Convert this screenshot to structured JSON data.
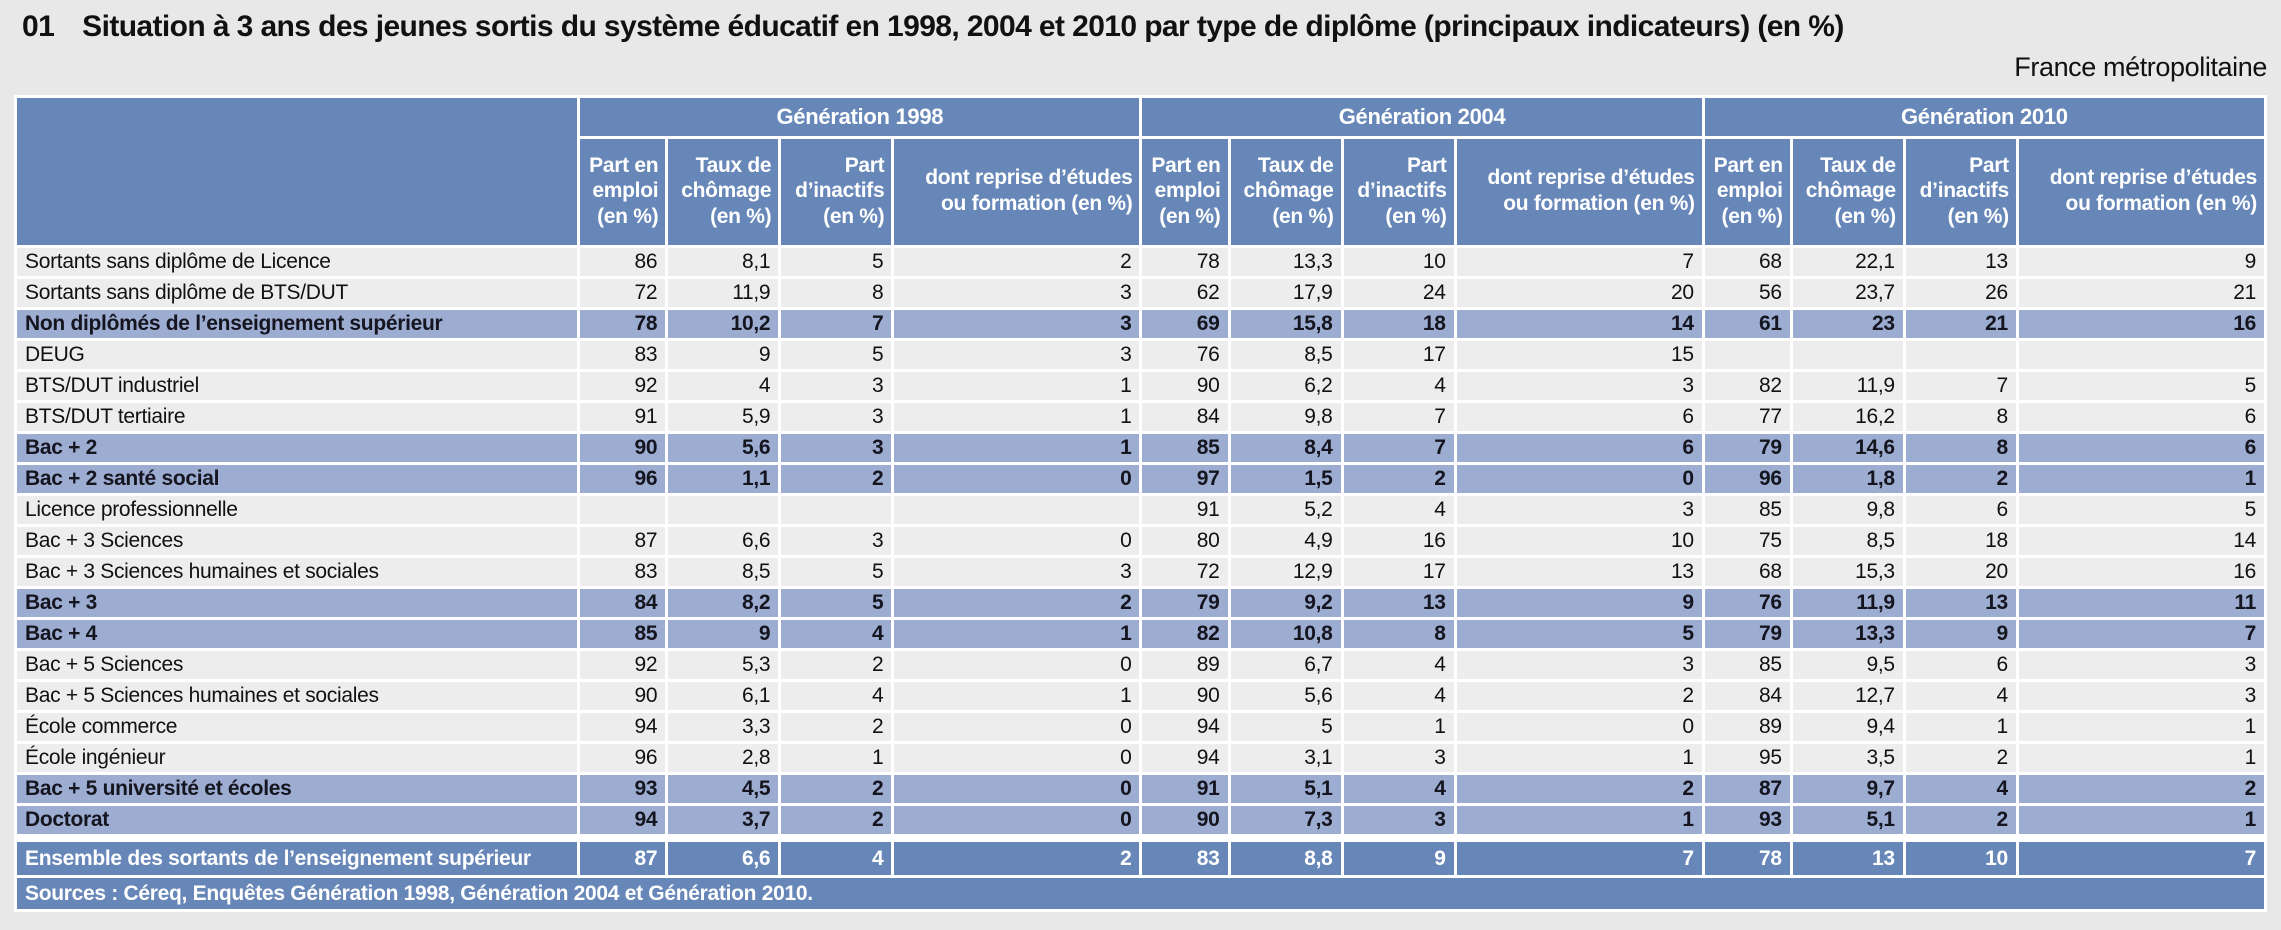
{
  "page": {
    "number": "01",
    "title": "Situation à 3 ans des jeunes sortis du système éducatif en 1998, 2004 et 2010 par type de diplôme (principaux indicateurs) (en %)",
    "region": "France métropolitaine"
  },
  "colors": {
    "header_blue": "#6787b9",
    "highlight_blue": "#9dadd2",
    "row_gray": "#ededed",
    "page_background": "#e8e8e8"
  },
  "table": {
    "groups": [
      "Génération 1998",
      "Génération 2004",
      "Génération 2010"
    ],
    "columns": [
      "Part en emploi (en %)",
      "Taux de chômage (en %)",
      "Part d’inactifs (en %)",
      "dont reprise d’études ou formation (en %)"
    ],
    "rows": [
      {
        "label": "Sortants sans diplôme de Licence",
        "style": "normal",
        "values": [
          "86",
          "8,1",
          "5",
          "2",
          "78",
          "13,3",
          "10",
          "7",
          "68",
          "22,1",
          "13",
          "9"
        ]
      },
      {
        "label": "Sortants sans diplôme de BTS/DUT",
        "style": "normal",
        "values": [
          "72",
          "11,9",
          "8",
          "3",
          "62",
          "17,9",
          "24",
          "20",
          "56",
          "23,7",
          "26",
          "21"
        ]
      },
      {
        "label": "Non diplômés de l’enseignement supérieur",
        "style": "highlight",
        "values": [
          "78",
          "10,2",
          "7",
          "3",
          "69",
          "15,8",
          "18",
          "14",
          "61",
          "23",
          "21",
          "16"
        ]
      },
      {
        "label": "DEUG",
        "style": "normal",
        "values": [
          "83",
          "9",
          "5",
          "3",
          "76",
          "8,5",
          "17",
          "15",
          "",
          "",
          "",
          ""
        ]
      },
      {
        "label": "BTS/DUT industriel",
        "style": "normal",
        "values": [
          "92",
          "4",
          "3",
          "1",
          "90",
          "6,2",
          "4",
          "3",
          "82",
          "11,9",
          "7",
          "5"
        ]
      },
      {
        "label": "BTS/DUT tertiaire",
        "style": "normal",
        "values": [
          "91",
          "5,9",
          "3",
          "1",
          "84",
          "9,8",
          "7",
          "6",
          "77",
          "16,2",
          "8",
          "6"
        ]
      },
      {
        "label": "Bac + 2",
        "style": "highlight",
        "values": [
          "90",
          "5,6",
          "3",
          "1",
          "85",
          "8,4",
          "7",
          "6",
          "79",
          "14,6",
          "8",
          "6"
        ]
      },
      {
        "label": "Bac + 2 santé social",
        "style": "highlight",
        "values": [
          "96",
          "1,1",
          "2",
          "0",
          "97",
          "1,5",
          "2",
          "0",
          "96",
          "1,8",
          "2",
          "1"
        ]
      },
      {
        "label": "Licence professionnelle",
        "style": "normal",
        "values": [
          "",
          "",
          "",
          "",
          "91",
          "5,2",
          "4",
          "3",
          "85",
          "9,8",
          "6",
          "5"
        ]
      },
      {
        "label": "Bac + 3 Sciences",
        "style": "normal",
        "values": [
          "87",
          "6,6",
          "3",
          "0",
          "80",
          "4,9",
          "16",
          "10",
          "75",
          "8,5",
          "18",
          "14"
        ]
      },
      {
        "label": "Bac + 3 Sciences humaines et sociales",
        "style": "normal",
        "values": [
          "83",
          "8,5",
          "5",
          "3",
          "72",
          "12,9",
          "17",
          "13",
          "68",
          "15,3",
          "20",
          "16"
        ]
      },
      {
        "label": "Bac + 3",
        "style": "highlight",
        "values": [
          "84",
          "8,2",
          "5",
          "2",
          "79",
          "9,2",
          "13",
          "9",
          "76",
          "11,9",
          "13",
          "11"
        ]
      },
      {
        "label": "Bac + 4",
        "style": "highlight",
        "values": [
          "85",
          "9",
          "4",
          "1",
          "82",
          "10,8",
          "8",
          "5",
          "79",
          "13,3",
          "9",
          "7"
        ]
      },
      {
        "label": "Bac + 5 Sciences",
        "style": "normal",
        "values": [
          "92",
          "5,3",
          "2",
          "0",
          "89",
          "6,7",
          "4",
          "3",
          "85",
          "9,5",
          "6",
          "3"
        ]
      },
      {
        "label": "Bac + 5 Sciences humaines et sociales",
        "style": "normal",
        "values": [
          "90",
          "6,1",
          "4",
          "1",
          "90",
          "5,6",
          "4",
          "2",
          "84",
          "12,7",
          "4",
          "3"
        ]
      },
      {
        "label": "École commerce",
        "style": "normal",
        "values": [
          "94",
          "3,3",
          "2",
          "0",
          "94",
          "5",
          "1",
          "0",
          "89",
          "9,4",
          "1",
          "1"
        ]
      },
      {
        "label": "École ingénieur",
        "style": "normal",
        "values": [
          "96",
          "2,8",
          "1",
          "0",
          "94",
          "3,1",
          "3",
          "1",
          "95",
          "3,5",
          "2",
          "1"
        ]
      },
      {
        "label": "Bac + 5 université et écoles",
        "style": "highlight",
        "values": [
          "93",
          "4,5",
          "2",
          "0",
          "91",
          "5,1",
          "4",
          "2",
          "87",
          "9,7",
          "4",
          "2"
        ]
      },
      {
        "label": "Doctorat",
        "style": "highlight",
        "values": [
          "94",
          "3,7",
          "2",
          "0",
          "90",
          "7,3",
          "3",
          "1",
          "93",
          "5,1",
          "2",
          "1"
        ]
      },
      {
        "label": "Ensemble des sortants de l’enseignement supérieur",
        "style": "total",
        "spacer_before": true,
        "values": [
          "87",
          "6,6",
          "4",
          "2",
          "83",
          "8,8",
          "9",
          "7",
          "78",
          "13",
          "10",
          "7"
        ]
      }
    ],
    "source": "Sources : Céreq, Enquêtes Génération 1998, Génération 2004 et Génération 2010."
  }
}
